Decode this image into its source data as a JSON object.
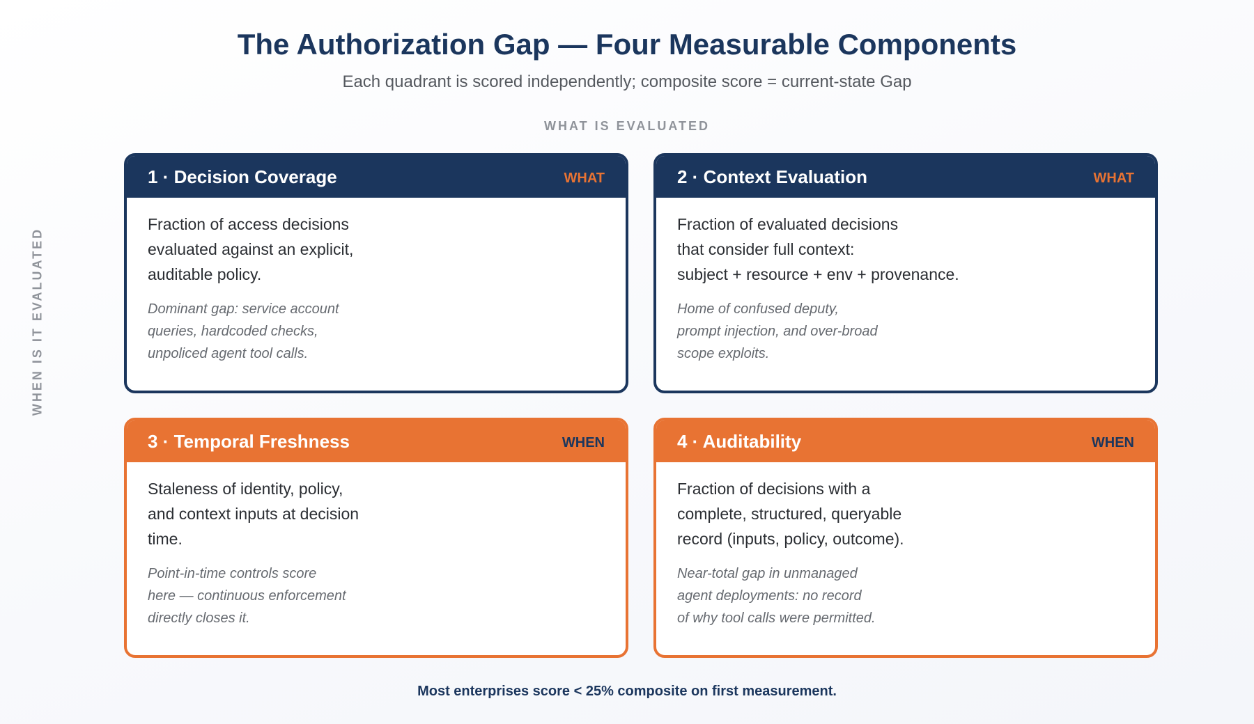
{
  "title": "The Authorization Gap — Four Measurable Components",
  "subtitle": "Each quadrant is scored independently; composite score = current-state Gap",
  "axis_top": "WHAT IS EVALUATED",
  "axis_left": "WHEN IS IT EVALUATED",
  "colors": {
    "navy": "#1b365d",
    "orange": "#e87333"
  },
  "cards": [
    {
      "title": "1 · Decision Coverage",
      "tag": "WHAT",
      "desc_lines": [
        "Fraction of access decisions",
        "evaluated against an explicit,",
        "auditable policy."
      ],
      "note_lines": [
        "Dominant gap: service account",
        "queries, hardcoded checks,",
        "unpoliced agent tool calls."
      ]
    },
    {
      "title": "2 · Context Evaluation",
      "tag": "WHAT",
      "desc_lines": [
        "Fraction of evaluated decisions",
        "that consider full context:",
        "subject + resource + env + provenance."
      ],
      "note_lines": [
        "Home of confused deputy,",
        "prompt injection, and over-broad",
        "scope exploits."
      ]
    },
    {
      "title": "3 · Temporal Freshness",
      "tag": "WHEN",
      "desc_lines": [
        "Staleness of identity, policy,",
        "and context inputs at decision",
        "time."
      ],
      "note_lines": [
        "Point-in-time controls score",
        "here — continuous enforcement",
        "directly closes it."
      ]
    },
    {
      "title": "4 · Auditability",
      "tag": "WHEN",
      "desc_lines": [
        "Fraction of decisions with a",
        "complete, structured, queryable",
        "record (inputs, policy, outcome)."
      ],
      "note_lines": [
        "Near-total gap in unmanaged",
        "agent deployments: no record",
        "of why tool calls were permitted."
      ]
    }
  ],
  "footer": "Most enterprises score < 25% composite on first measurement."
}
